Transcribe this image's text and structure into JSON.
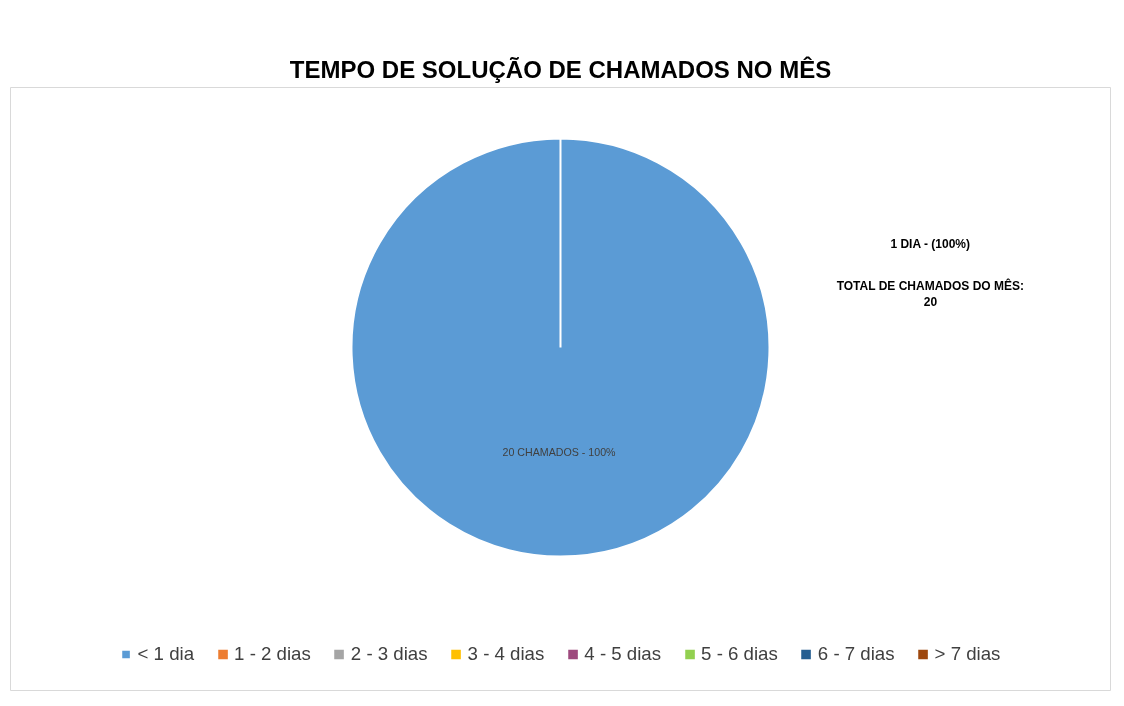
{
  "chart_data": {
    "type": "pie",
    "title": "TEMPO DE SOLUÇÃO DE CHAMADOS NO MÊS",
    "categories": [
      "< 1 dia",
      "1 - 2 dias",
      "2 - 3 dias",
      "3 - 4 dias",
      "4 - 5 dias",
      "5 - 6 dias",
      "6 - 7 dias",
      "> 7 dias"
    ],
    "values": [
      20,
      0,
      0,
      0,
      0,
      0,
      0,
      0
    ],
    "colors": [
      "#5b9bd5",
      "#ed7d31",
      "#a5a5a5",
      "#ffc000",
      "#9e4a7e",
      "#92d050",
      "#255e91",
      "#9e480e"
    ],
    "value_labels": [
      "20  CHAMADOS - 100%",
      null,
      null,
      null,
      null,
      null,
      null,
      null
    ],
    "annotations": [
      "1 DIA - (100%)",
      "TOTAL DE CHAMADOS DO MÊS:\n20"
    ],
    "legend": "bottom"
  }
}
